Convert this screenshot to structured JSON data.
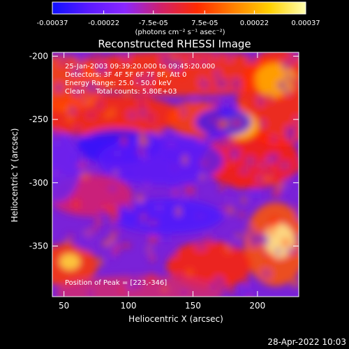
{
  "footer_timestamp": "28-Apr-2022 10:03",
  "colorbar": {
    "tick_labels": [
      "-0.00037",
      "-0.00022",
      "-7.5e-05",
      "7.5e-05",
      "0.00022",
      "0.00037"
    ],
    "tick_values": [
      -0.00037,
      -0.00022,
      -7.5e-05,
      7.5e-05,
      0.00022,
      0.00037
    ],
    "range": [
      -0.00037,
      0.00037
    ],
    "units_label": "(photons cm⁻² s⁻¹ asec⁻²)",
    "colors": [
      "#1010ff",
      "#5a1aff",
      "#8a26ff",
      "#d0206a",
      "#ff2a00",
      "#ff8000",
      "#ffd000",
      "#ffffb0"
    ]
  },
  "chart_data": {
    "type": "heatmap",
    "title": "Reconstructed RHESSI Image",
    "xlabel": "Heliocentric X (arcsec)",
    "ylabel": "Heliocentric Y (arcsec)",
    "xlim": [
      41,
      232
    ],
    "ylim": [
      -390,
      -197
    ],
    "x_ticks": [
      50,
      100,
      150,
      200
    ],
    "x_tick_labels": [
      "50",
      "100",
      "150",
      "200"
    ],
    "y_ticks": [
      -350,
      -300,
      -250,
      -200
    ],
    "y_tick_labels": [
      "-350",
      "-300",
      "-250",
      "-200"
    ],
    "annotations": {
      "time_range": "25-Jan-2003 09:39:20.000 to 09:45:20.000",
      "detectors": "Detectors: 3F 4F 5F 6F 7F 8F, Att 0",
      "energy_range": "Energy Range: 25.0 - 50.0 keV",
      "method_counts": "Clean     Total counts: 5.80E+03",
      "peak_position": "Position of Peak = [223,-346]"
    },
    "peak": [
      223,
      -346
    ],
    "grid": false
  }
}
